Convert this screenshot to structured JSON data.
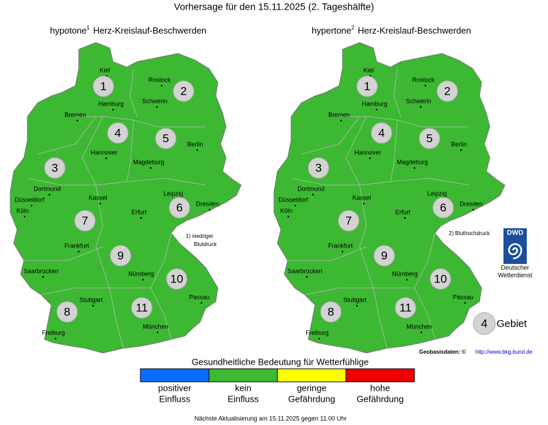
{
  "header": {
    "title": "Vorhersage für den 15.11.2025 (2. Tageshälfte)"
  },
  "maps": [
    {
      "title_prefix": "hypotone",
      "footnote_mark": "1",
      "title_suffix": "Herz-Kreislauf-Beschwerden",
      "footnote": [
        "1) niedriger",
        "Blutdruck"
      ],
      "fill_color": "#3cb832"
    },
    {
      "title_prefix": "hypertone",
      "footnote_mark": "2",
      "title_suffix": "Herz-Kreislauf-Beschwerden",
      "footnote": [
        "2) Bluthochdruck"
      ],
      "fill_color": "#3cb832"
    }
  ],
  "regions": [
    1,
    2,
    3,
    4,
    5,
    6,
    7,
    8,
    9,
    10,
    11
  ],
  "cities": [
    "Kiel",
    "Hamburg",
    "Rostock",
    "Schwerin",
    "Bremen",
    "Hannover",
    "Berlin",
    "Magdeburg",
    "Dortmund",
    "Düsseldorf",
    "Köln",
    "Kassel",
    "Leipzig",
    "Dresden",
    "Erfurt",
    "Frankfurt",
    "Saarbrücken",
    "Nürnberg",
    "Stuttgart",
    "Passau",
    "Freiburg",
    "München"
  ],
  "region_key": {
    "number": 4,
    "label": "Gebiet"
  },
  "logo": {
    "abbr": "DWD",
    "lines": [
      "Deutscher",
      "Wetterdienst"
    ]
  },
  "credit": {
    "text": "Geobasisdaten: ©",
    "link": "http://www.bkg.bund.de"
  },
  "scale": {
    "title": "Gesundheitliche Bedeutung für Wetterfühlige",
    "items": [
      {
        "color": "#0a6cff",
        "label": [
          "positiver",
          "Einfluss"
        ]
      },
      {
        "color": "#3cb832",
        "label": [
          "kein",
          "Einfluss"
        ]
      },
      {
        "color": "#ffff00",
        "label": [
          "geringe",
          "Gefährdung"
        ]
      },
      {
        "color": "#ee0000",
        "label": [
          "hohe",
          "Gefährdung"
        ]
      }
    ]
  },
  "footer": "Nächste Aktualisierung am 15.11.2025 gegen 11.00 Uhr"
}
